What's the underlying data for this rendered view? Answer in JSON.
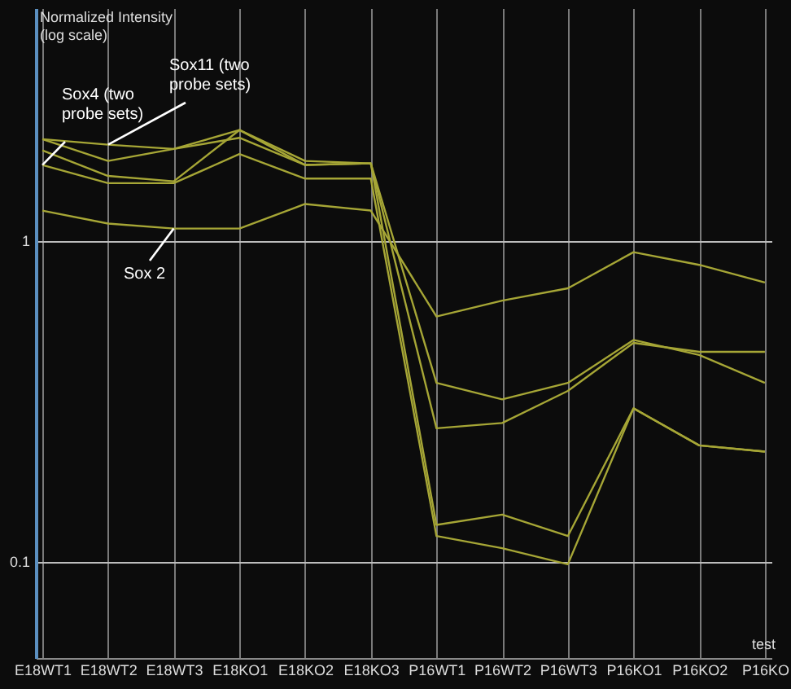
{
  "chart_data": {
    "type": "line",
    "xlabel": "test",
    "ylabel": "Normalized Intensity (log scale)",
    "categories": [
      "E18WT1",
      "E18WT2",
      "E18WT3",
      "E18KO1",
      "E18KO2",
      "E18KO3",
      "P16WT1",
      "P16WT2",
      "P16WT3",
      "P16KO1",
      "P16KO2",
      "P16KO"
    ],
    "series": [
      {
        "color": "#a6a636",
        "values": [
          2.07,
          1.99,
          1.93,
          2.21,
          1.77,
          1.74,
          0.36,
          0.32,
          0.36,
          0.49,
          0.44,
          0.36
        ]
      },
      {
        "color": "#a6a636",
        "values": [
          2.07,
          1.77,
          1.93,
          2.09,
          1.72,
          1.74,
          0.26,
          0.27,
          0.34,
          0.48,
          0.45,
          0.45
        ]
      },
      {
        "color": "#a6a636",
        "values": [
          1.91,
          1.59,
          1.53,
          2.21,
          1.72,
          1.74,
          0.13,
          0.14,
          0.12,
          0.3,
          0.23,
          0.22
        ]
      },
      {
        "color": "#a6a636",
        "values": [
          1.72,
          1.51,
          1.51,
          1.86,
          1.56,
          1.56,
          0.12,
          0.11,
          0.098,
          0.3,
          0.23,
          0.22
        ]
      },
      {
        "color": "#a6a636",
        "values": [
          1.24,
          1.13,
          1.09,
          1.09,
          1.3,
          1.24,
          0.58,
          0.65,
          0.71,
          0.92,
          0.84,
          0.74
        ]
      }
    ],
    "log": "y",
    "ylim": [
      0.05,
      5.3
    ],
    "yticks": [
      0.1,
      1
    ],
    "grid": true,
    "marker": "none",
    "line_style": "solid",
    "annotations": [
      {
        "text": "Sox4 (two probe sets)",
        "x": "E18WT1",
        "y": 1.72
      },
      {
        "text": "Sox11 (two probe sets)",
        "x": "E18WT2",
        "y": 1.99
      },
      {
        "text": "Sox 2",
        "x": "E18WT3",
        "y": 1.09
      }
    ]
  }
}
